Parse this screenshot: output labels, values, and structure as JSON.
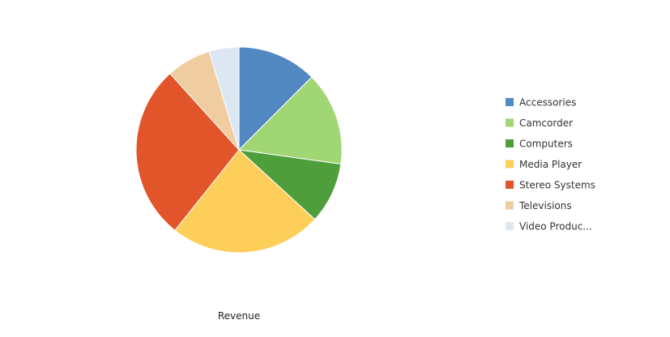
{
  "chart_data": {
    "type": "pie",
    "title": "",
    "caption": "Revenue",
    "legend_position": "right",
    "categories": [
      "Accessories",
      "Camcorder",
      "Computers",
      "Media Player",
      "Stereo Systems",
      "Televisions",
      "Video Produc..."
    ],
    "values": [
      12.5,
      14.7,
      9.6,
      23.9,
      27.6,
      7.0,
      4.7
    ],
    "colors": [
      "#5289c2",
      "#a0d774",
      "#4e9e3c",
      "#fdcf5a",
      "#e2552b",
      "#f0cda1",
      "#dde7f3"
    ],
    "start_angle_deg": 0,
    "direction": "clockwise"
  }
}
